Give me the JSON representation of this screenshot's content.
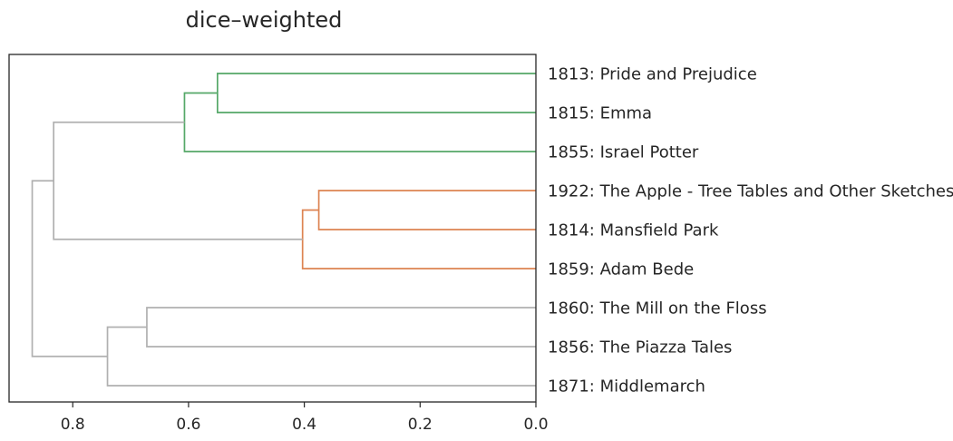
{
  "chart_data": {
    "type": "dendrogram",
    "title": "dice–weighted",
    "orientation": "left",
    "xlim": [
      0.91,
      0.0
    ],
    "x_ticks": [
      {
        "value": 0.8,
        "label": "0.8"
      },
      {
        "value": 0.6,
        "label": "0.6"
      },
      {
        "value": 0.4,
        "label": "0.4"
      },
      {
        "value": 0.2,
        "label": "0.2"
      },
      {
        "value": 0.0,
        "label": "0.0"
      }
    ],
    "leaves": [
      "1813: Pride and Prejudice",
      "1815: Emma",
      "1855: Israel Potter",
      "1922: The Apple - Tree Tables and Other Sketches",
      "1814: Mansfield Park",
      "1859: Adam Bede",
      "1860: The Mill on the Floss",
      "1856: The Piazza Tales",
      "1871: Middlemarch"
    ],
    "colors": {
      "cluster_green": "#55a868",
      "cluster_orange": "#dd8452",
      "above_threshold": "#b0b0b0"
    },
    "merges": [
      {
        "id": "m1",
        "left": 3,
        "right": 4,
        "distance": 0.375,
        "color": "cluster_orange"
      },
      {
        "id": "m2",
        "left": "m1",
        "right": 5,
        "distance": 0.403,
        "color": "cluster_orange"
      },
      {
        "id": "m3",
        "left": 0,
        "right": 1,
        "distance": 0.55,
        "color": "cluster_green"
      },
      {
        "id": "m4",
        "left": "m3",
        "right": 2,
        "distance": 0.607,
        "color": "cluster_green"
      },
      {
        "id": "m5",
        "left": 6,
        "right": 7,
        "distance": 0.672,
        "color": "above_threshold"
      },
      {
        "id": "m6",
        "left": "m5",
        "right": 8,
        "distance": 0.74,
        "color": "above_threshold"
      },
      {
        "id": "m7",
        "left": "m4",
        "right": "m2",
        "distance": 0.833,
        "color": "above_threshold"
      },
      {
        "id": "m8",
        "left": "m7",
        "right": "m6",
        "distance": 0.87,
        "color": "above_threshold"
      }
    ]
  }
}
